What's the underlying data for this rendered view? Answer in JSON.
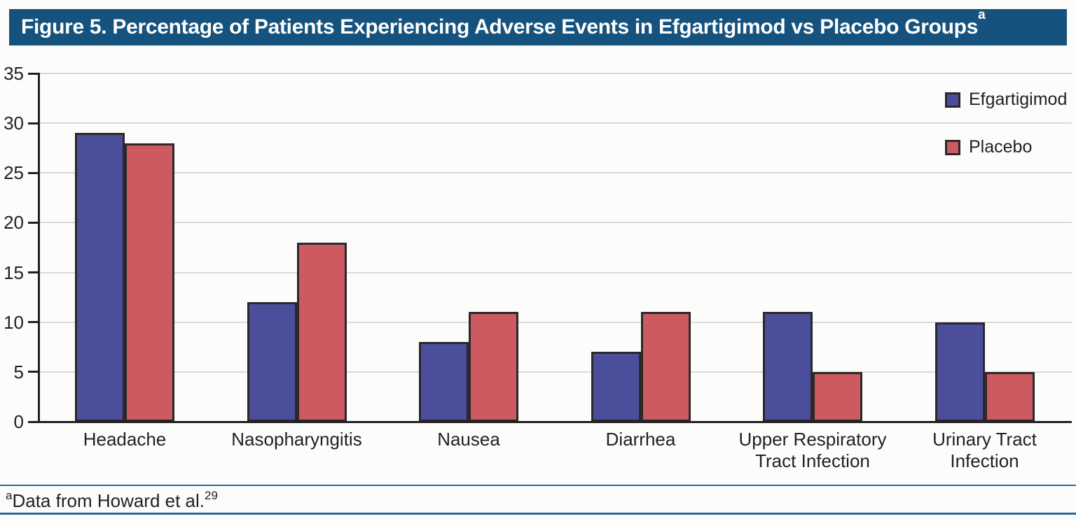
{
  "header": {
    "title": "Figure 5. Percentage of Patients Experiencing Adverse Events in Efgartigimod vs Placebo Groups",
    "title_superscript": "a",
    "background_color": "#15527E",
    "text_color": "#FFFFFF"
  },
  "chart_data": {
    "type": "bar",
    "title": "Figure 5. Percentage of Patients Experiencing Adverse Events in Efgartigimod vs Placebo Groups (a)",
    "categories": [
      "Headache",
      "Nasopharyngitis",
      "Nausea",
      "Diarrhea",
      "Upper Respiratory\nTract Infection",
      "Urinary Tract\nInfection"
    ],
    "series": [
      {
        "name": "Efgartigimod",
        "color": "#4B4E9B",
        "values": [
          29,
          12,
          8,
          7,
          11,
          10
        ]
      },
      {
        "name": "Placebo",
        "color": "#CD5A61",
        "values": [
          28,
          18,
          11,
          11,
          5,
          5
        ]
      }
    ],
    "xlabel": "",
    "ylabel": "",
    "ylim": [
      0,
      35
    ],
    "yticks": [
      0,
      5,
      10,
      15,
      20,
      25,
      30,
      35
    ],
    "grid": "horizontal",
    "legend_position": "top-right",
    "bar_border_color": "#2B282B",
    "gridline_color": "#D9D9D9",
    "axis_color": "#231F20"
  },
  "footnote": {
    "superscript": "a",
    "text": "Data from Howard et al.",
    "reference_superscript": "29",
    "rule_color": "#2B6899"
  }
}
